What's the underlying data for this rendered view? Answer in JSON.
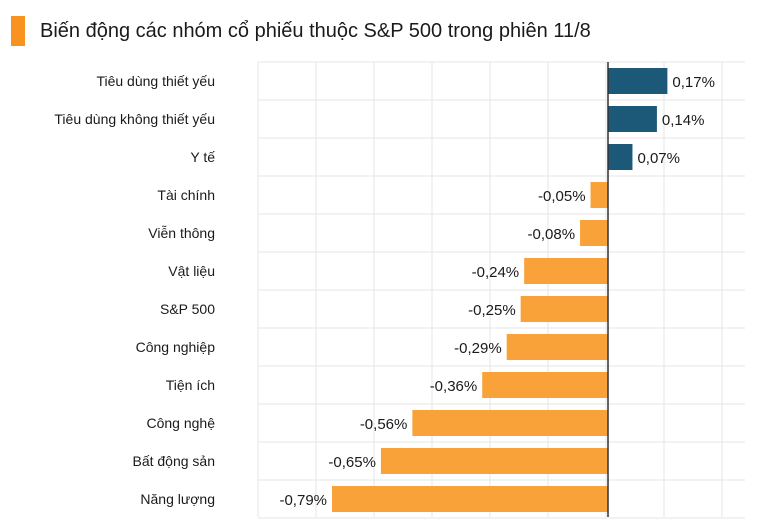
{
  "title": "Biến động các nhóm cổ phiếu thuộc S&P 500 trong phiên 11/8",
  "colors": {
    "accent": "#f7931e",
    "positive": "#1c5878",
    "negative": "#f9a23a",
    "grid": "#e6e6e6",
    "axis": "#333333"
  },
  "chart_data": {
    "type": "bar",
    "orientation": "horizontal",
    "categories": [
      "Tiêu dùng thiết yếu",
      "Tiêu dùng không thiết yếu",
      "Y tế",
      "Tài chính",
      "Viễn thông",
      "Vật liệu",
      "S&P 500",
      "Công nghiệp",
      "Tiện ích",
      "Công nghệ",
      "Bất động sản",
      "Năng lượng"
    ],
    "values": [
      0.17,
      0.14,
      0.07,
      -0.05,
      -0.08,
      -0.24,
      -0.25,
      -0.29,
      -0.36,
      -0.56,
      -0.65,
      -0.79
    ],
    "value_labels": [
      "0,17%",
      "0,14%",
      "0,07%",
      "-0,05%",
      "-0,08%",
      "-0,24%",
      "-0,25%",
      "-0,29%",
      "-0,36%",
      "-0,56%",
      "-0,65%",
      "-0,79%"
    ],
    "title": "Biến động các nhóm cổ phiếu thuộc S&P 500 trong phiên 11/8",
    "xlabel": "",
    "ylabel": "",
    "xlim": [
      -0.8,
      0.35
    ],
    "grid": true,
    "legend": "none"
  }
}
